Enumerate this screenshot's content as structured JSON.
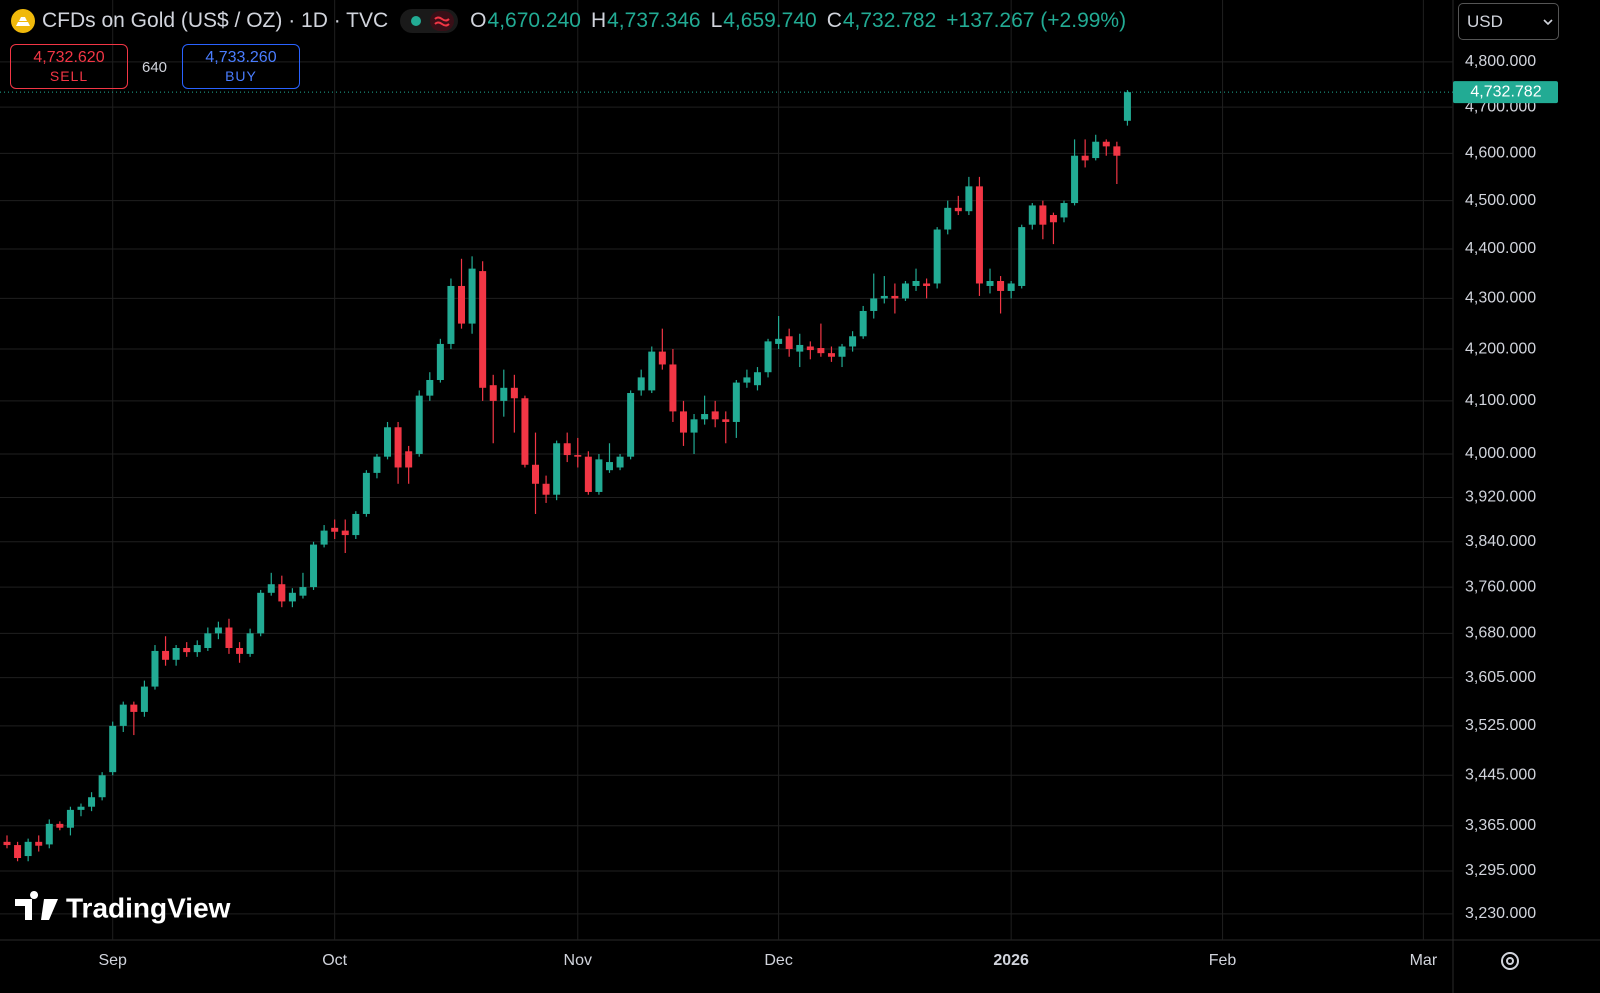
{
  "chart_data": {
    "type": "candlestick",
    "y_scale": "log",
    "grid": true,
    "up_color": "#22ab94",
    "down_color": "#f23645",
    "ylim": [
      3191,
      4940
    ],
    "yticks": [
      {
        "value": 3230,
        "label": "3,230.000"
      },
      {
        "value": 3295,
        "label": "3,295.000"
      },
      {
        "value": 3365,
        "label": "3,365.000"
      },
      {
        "value": 3445,
        "label": "3,445.000"
      },
      {
        "value": 3525,
        "label": "3,525.000"
      },
      {
        "value": 3605,
        "label": "3,605.000"
      },
      {
        "value": 3680,
        "label": "3,680.000"
      },
      {
        "value": 3760,
        "label": "3,760.000"
      },
      {
        "value": 3840,
        "label": "3,840.000"
      },
      {
        "value": 3920,
        "label": "3,920.000"
      },
      {
        "value": 4000,
        "label": "4,000.000"
      },
      {
        "value": 4100,
        "label": "4,100.000"
      },
      {
        "value": 4200,
        "label": "4,200.000"
      },
      {
        "value": 4300,
        "label": "4,300.000"
      },
      {
        "value": 4400,
        "label": "4,400.000"
      },
      {
        "value": 4500,
        "label": "4,500.000"
      },
      {
        "value": 4600,
        "label": "4,600.000"
      },
      {
        "value": 4700,
        "label": "4,700.000"
      },
      {
        "value": 4800,
        "label": "4,800.000"
      }
    ],
    "last_price_label": "4,732.782",
    "categories": [
      null,
      null,
      null,
      null,
      null,
      null,
      null,
      null,
      null,
      null,
      "Sep",
      null,
      null,
      null,
      null,
      null,
      null,
      null,
      null,
      null,
      null,
      null,
      null,
      null,
      null,
      null,
      null,
      null,
      null,
      null,
      null,
      "Oct",
      null,
      null,
      null,
      null,
      null,
      null,
      null,
      null,
      null,
      null,
      null,
      null,
      null,
      null,
      null,
      null,
      null,
      null,
      null,
      null,
      null,
      null,
      "Nov",
      null,
      null,
      null,
      null,
      null,
      null,
      null,
      null,
      null,
      null,
      null,
      null,
      null,
      null,
      null,
      null,
      null,
      null,
      "Dec",
      null,
      null,
      null,
      null,
      null,
      null,
      null,
      null,
      null,
      null,
      null,
      null,
      null,
      null,
      null,
      null,
      null,
      null,
      null,
      null,
      null,
      "2026",
      null,
      null,
      null,
      null,
      null,
      null,
      null,
      null,
      null,
      null,
      null,
      null,
      null,
      null,
      null,
      null,
      null,
      null,
      null,
      "Feb",
      null,
      null,
      null,
      null,
      null,
      null,
      null,
      null,
      null,
      null,
      null,
      null,
      null,
      null,
      null,
      null,
      null,
      null,
      "Mar",
      null,
      null
    ],
    "open": [
      3340,
      3335,
      3318,
      3340,
      3336,
      3368,
      3362,
      3390,
      3395,
      3410,
      3450,
      3525,
      3560,
      3548,
      3590,
      3650,
      3635,
      3655,
      3648,
      3655,
      3680,
      3690,
      3655,
      3645,
      3680,
      3750,
      3765,
      3735,
      3745,
      3760,
      3835,
      3865,
      3860,
      3852,
      3890,
      3965,
      3995,
      4050,
      4005,
      4000,
      4110,
      4140,
      4210,
      4325,
      4250,
      4355,
      4130,
      4100,
      4125,
      4105,
      3980,
      3945,
      3925,
      4020,
      3998,
      3995,
      3930,
      3970,
      3975,
      3995,
      4120,
      4120,
      4195,
      4170,
      4080,
      4040,
      4065,
      4080,
      4065,
      4060,
      4135,
      4130,
      4155,
      4210,
      4225,
      4195,
      4205,
      4202,
      4192,
      4185,
      4205,
      4225,
      4275,
      4300,
      4305,
      4300,
      4325,
      4330,
      4330,
      4440,
      4485,
      4478,
      4530,
      4325,
      4335,
      4315,
      4325,
      4450,
      4490,
      4470,
      4465,
      4495,
      4595,
      4590,
      4625,
      4615,
      4670.24,
      null,
      null,
      null,
      null,
      null,
      null,
      null,
      null,
      null,
      null,
      null,
      null,
      null,
      null,
      null,
      null,
      null,
      null,
      null,
      null,
      null,
      null,
      null,
      null,
      null,
      null,
      null,
      null,
      null,
      null
    ],
    "high": [
      3350,
      3340,
      3345,
      3350,
      3375,
      3372,
      3395,
      3400,
      3418,
      3450,
      3532,
      3565,
      3565,
      3600,
      3660,
      3675,
      3660,
      3665,
      3668,
      3690,
      3700,
      3705,
      3665,
      3688,
      3755,
      3785,
      3780,
      3758,
      3785,
      3840,
      3870,
      3880,
      3880,
      3895,
      3970,
      4000,
      4060,
      4060,
      4015,
      4120,
      4155,
      4220,
      4340,
      4380,
      4385,
      4375,
      4150,
      4160,
      4150,
      4110,
      4040,
      3960,
      4025,
      4040,
      4030,
      4005,
      4000,
      4020,
      4000,
      4120,
      4160,
      4205,
      4240,
      4200,
      4100,
      4075,
      4110,
      4100,
      4080,
      4140,
      4160,
      4165,
      4220,
      4265,
      4240,
      4230,
      4215,
      4250,
      4205,
      4210,
      4235,
      4285,
      4350,
      4345,
      4330,
      4335,
      4360,
      4340,
      4445,
      4500,
      4510,
      4550,
      4550,
      4360,
      4345,
      4335,
      4450,
      4495,
      4500,
      4475,
      4500,
      4630,
      4630,
      4640,
      4630,
      4625,
      4737.346,
      null,
      null,
      null,
      null,
      null,
      null,
      null,
      null,
      null,
      null,
      null,
      null,
      null,
      null,
      null,
      null,
      null,
      null,
      null,
      null,
      null,
      null,
      null,
      null,
      null,
      null,
      null,
      null,
      null,
      null
    ],
    "low": [
      3330,
      3310,
      3310,
      3325,
      3330,
      3358,
      3350,
      3380,
      3388,
      3405,
      3445,
      3515,
      3510,
      3540,
      3585,
      3625,
      3625,
      3640,
      3640,
      3650,
      3670,
      3645,
      3630,
      3640,
      3675,
      3745,
      3725,
      3725,
      3740,
      3755,
      3830,
      3845,
      3820,
      3845,
      3885,
      3955,
      3990,
      3945,
      3945,
      3995,
      4100,
      4135,
      4200,
      4240,
      4230,
      4100,
      4020,
      4070,
      4040,
      3975,
      3890,
      3910,
      3915,
      3985,
      3975,
      3925,
      3925,
      3965,
      3970,
      3990,
      4110,
      4115,
      4160,
      4060,
      4015,
      4000,
      4055,
      4050,
      4020,
      4030,
      4125,
      4120,
      4145,
      4200,
      4185,
      4165,
      4180,
      4185,
      4175,
      4165,
      4195,
      4220,
      4260,
      4290,
      4270,
      4295,
      4315,
      4300,
      4320,
      4430,
      4470,
      4470,
      4305,
      4310,
      4270,
      4300,
      4320,
      4440,
      4420,
      4410,
      4455,
      4490,
      4570,
      4585,
      4595,
      4535,
      4659.74,
      null,
      null,
      null,
      null,
      null,
      null,
      null,
      null,
      null,
      null,
      null,
      null,
      null,
      null,
      null,
      null,
      null,
      null,
      null,
      null,
      null,
      null,
      null,
      null,
      null,
      null,
      null,
      null,
      null,
      null
    ],
    "close": [
      3335,
      3315,
      3340,
      3334,
      3368,
      3362,
      3390,
      3395,
      3410,
      3445,
      3525,
      3560,
      3548,
      3590,
      3650,
      3635,
      3655,
      3648,
      3660,
      3680,
      3690,
      3655,
      3645,
      3680,
      3750,
      3765,
      3735,
      3750,
      3760,
      3835,
      3860,
      3858,
      3852,
      3890,
      3965,
      3995,
      4050,
      3975,
      3975,
      4110,
      4140,
      4210,
      4325,
      4250,
      4360,
      4125,
      4100,
      4125,
      4105,
      3980,
      3945,
      3925,
      4020,
      3998,
      3995,
      3930,
      3990,
      3985,
      3995,
      4115,
      4145,
      4195,
      4170,
      4080,
      4040,
      4065,
      4075,
      4065,
      4060,
      4135,
      4145,
      4155,
      4215,
      4220,
      4200,
      4208,
      4198,
      4192,
      4185,
      4205,
      4225,
      4275,
      4300,
      4305,
      4300,
      4330,
      4335,
      4325,
      4440,
      4485,
      4478,
      4530,
      4330,
      4335,
      4315,
      4330,
      4445,
      4490,
      4450,
      4455,
      4495,
      4595,
      4585,
      4625,
      4615,
      4595,
      4732.782,
      null,
      null,
      null,
      null,
      null,
      null,
      null,
      null,
      null,
      null,
      null,
      null,
      null,
      null,
      null,
      null,
      null,
      null,
      null,
      null,
      null,
      null,
      null,
      null,
      null,
      null,
      null,
      null,
      null,
      null
    ]
  },
  "toolbar": {
    "symbol_title": "CFDs on Gold (US$ / OZ) · 1D · TVC",
    "ohlc": [
      {
        "label": "O",
        "value": "4,670.240"
      },
      {
        "label": "H",
        "value": "4,737.346"
      },
      {
        "label": "L",
        "value": "4,659.740"
      },
      {
        "label": "C",
        "value": "4,732.782"
      }
    ],
    "change": "+137.267 (+2.99%)",
    "sell": {
      "price": "4,732.620",
      "label": "SELL"
    },
    "spread": "640",
    "buy": {
      "price": "4,733.260",
      "label": "BUY"
    },
    "currency": "USD"
  },
  "logo": "TradingView"
}
